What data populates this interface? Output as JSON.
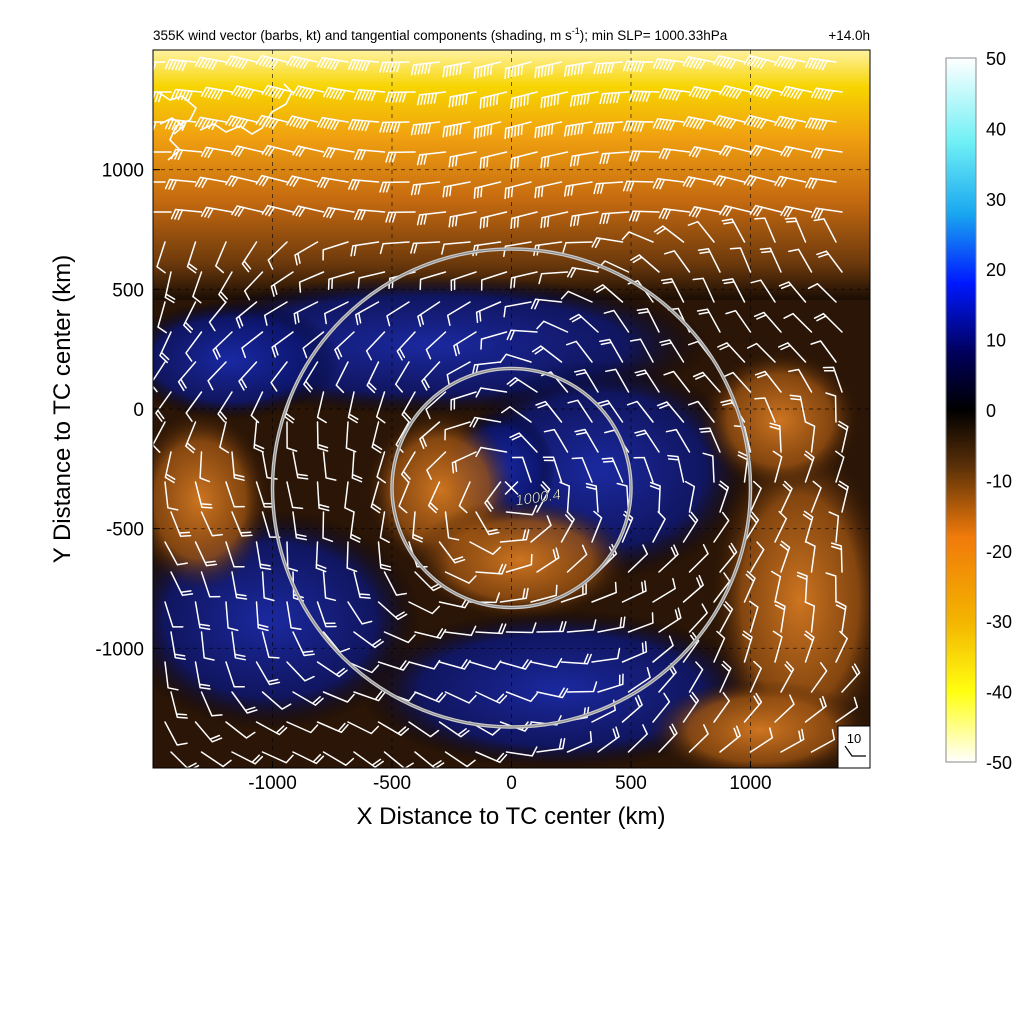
{
  "chart_data": {
    "type": "heatmap",
    "title_main": "355K wind vector (barbs, kt) and tangential components (shading, m s",
    "title_sup": "-1",
    "title_rest": "); min SLP= 1000.33hPa",
    "title_time": "+14.0h",
    "xlabel": "X Distance to TC center (km)",
    "ylabel": "Y Distance to TC center (km)",
    "xlim": [
      -1500,
      1500
    ],
    "ylim": [
      -1500,
      1500
    ],
    "xticks": [
      -1000,
      -500,
      0,
      500,
      1000
    ],
    "yticks": [
      -1000,
      -500,
      0,
      500,
      1000
    ],
    "xtick_labels": [
      "-1000",
      "-500",
      "0",
      "500",
      "1000"
    ],
    "ytick_labels": [
      "-1000",
      "-500",
      "0",
      "500",
      "1000"
    ],
    "grid": true,
    "colorbar": {
      "vmin": -50,
      "vmax": 50,
      "ticks": [
        50,
        40,
        30,
        20,
        10,
        0,
        -10,
        -20,
        -30,
        -40,
        -50
      ],
      "tick_labels": [
        "50",
        "40",
        "30",
        "20",
        "10",
        "0",
        "-10",
        "-20",
        "-30",
        "-40",
        "-50"
      ],
      "colors": [
        "#ffffff",
        "#33e5f2",
        "#0000ff",
        "#000000",
        "#f07a0a",
        "#ffff00",
        "#ffffff"
      ]
    },
    "center_marker": {
      "label": "1000.4",
      "x": 0,
      "y": -330
    },
    "range_rings": [
      {
        "center_x": 0,
        "center_y": -330,
        "radius_km": 500
      },
      {
        "center_x": 0,
        "center_y": -330,
        "radius_km": 1000
      }
    ],
    "reference_barb": {
      "label": "10"
    },
    "colors": {
      "negative_strong": "#f5d800",
      "negative_moderate": "#d9780f",
      "negative_weak": "#6b3a10",
      "near_zero": "#000000",
      "positive": "#1424a8"
    }
  }
}
